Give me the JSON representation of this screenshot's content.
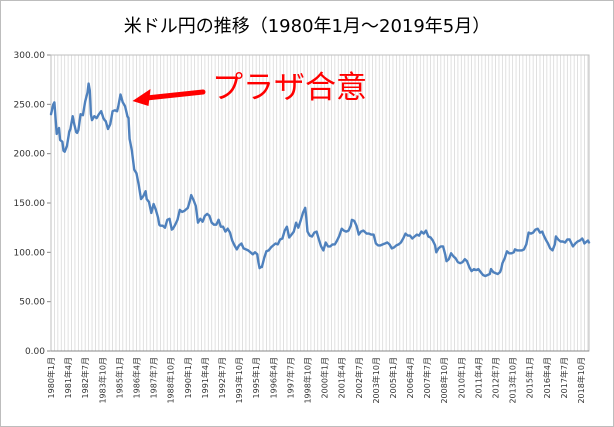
{
  "chart_data": {
    "type": "line",
    "title": "米ドル円の推移（1980年1月～2019年5月）",
    "xlabel": "",
    "ylabel": "",
    "ylim": [
      0,
      300
    ],
    "yticks": [
      "0.00",
      "50.00",
      "100.00",
      "150.00",
      "200.00",
      "250.00",
      "300.00"
    ],
    "grid": "vertical",
    "legend": "none",
    "line_color": "#4f81bd",
    "annotation": {
      "text": "プラザ合意",
      "color": "#ff0000",
      "points_to": "1985年9月"
    },
    "xticks": [
      "1980年1月",
      "1981年4月",
      "1982年7月",
      "1983年10月",
      "1985年1月",
      "1986年4月",
      "1987年7月",
      "1988年10月",
      "1990年1月",
      "1991年4月",
      "1992年7月",
      "1993年10月",
      "1995年1月",
      "1996年4月",
      "1997年7月",
      "1998年10月",
      "2000年1月",
      "2001年4月",
      "2002年7月",
      "2003年10月",
      "2005年1月",
      "2006年4月",
      "2007年7月",
      "2008年10月",
      "2010年1月",
      "2011年4月",
      "2012年7月",
      "2013年10月",
      "2015年1月",
      "2016年4月",
      "2017年7月",
      "2018年10月"
    ],
    "series": [
      {
        "values": [
          [
            "1980年1月",
            240
          ],
          [
            "1980年3月",
            250
          ],
          [
            "1980年4月",
            252
          ],
          [
            "1980年6月",
            220
          ],
          [
            "1980年8月",
            226
          ],
          [
            "1980年9月",
            214
          ],
          [
            "1980年11月",
            212
          ],
          [
            "1980年12月",
            203
          ],
          [
            "1981年1月",
            202
          ],
          [
            "1981年3月",
            208
          ],
          [
            "1981年5月",
            222
          ],
          [
            "1981年6月",
            225
          ],
          [
            "1981年8月",
            238
          ],
          [
            "1981年9月",
            232
          ],
          [
            "1981年11月",
            222
          ],
          [
            "1981年12月",
            221
          ],
          [
            "1982年1月",
            224
          ],
          [
            "1982年3月",
            240
          ],
          [
            "1982年5月",
            239
          ],
          [
            "1982年7月",
            253
          ],
          [
            "1982年9月",
            262
          ],
          [
            "1982年10月",
            271
          ],
          [
            "1982年11月",
            264
          ],
          [
            "1982年12月",
            240
          ],
          [
            "1983年1月",
            234
          ],
          [
            "1983年3月",
            238
          ],
          [
            "1983年5月",
            236
          ],
          [
            "1983年7月",
            240
          ],
          [
            "1983年9月",
            243
          ],
          [
            "1983年11月",
            236
          ],
          [
            "1983年12月",
            234
          ],
          [
            "1984年1月",
            233
          ],
          [
            "1984年3月",
            225
          ],
          [
            "1984年5月",
            230
          ],
          [
            "1984年7月",
            243
          ],
          [
            "1984年9月",
            244
          ],
          [
            "1984年11月",
            243
          ],
          [
            "1984年12月",
            248
          ],
          [
            "1985年1月",
            254
          ],
          [
            "1985年2月",
            260
          ],
          [
            "1985年4月",
            252
          ],
          [
            "1985年6月",
            248
          ],
          [
            "1985年8月",
            238
          ],
          [
            "1985年9月",
            236
          ],
          [
            "1985年10月",
            215
          ],
          [
            "1985年12月",
            203
          ],
          [
            "1986年2月",
            184
          ],
          [
            "1986年4月",
            180
          ],
          [
            "1986年6月",
            168
          ],
          [
            "1986年8月",
            154
          ],
          [
            "1986年10月",
            157
          ],
          [
            "1986年12月",
            162
          ],
          [
            "1987年1月",
            154
          ],
          [
            "1987年3月",
            151
          ],
          [
            "1987年5月",
            140
          ],
          [
            "1987年7月",
            149
          ],
          [
            "1987年9月",
            143
          ],
          [
            "1987年11月",
            135
          ],
          [
            "1987年12月",
            128
          ],
          [
            "1988年1月",
            127
          ],
          [
            "1988年3月",
            127
          ],
          [
            "1988年5月",
            125
          ],
          [
            "1988年7月",
            133
          ],
          [
            "1988年9月",
            134
          ],
          [
            "1988年11月",
            123
          ],
          [
            "1988年12月",
            124
          ],
          [
            "1989年2月",
            128
          ],
          [
            "1989年4月",
            133
          ],
          [
            "1989年6月",
            143
          ],
          [
            "1989年8月",
            141
          ],
          [
            "1989年10月",
            142
          ],
          [
            "1989年12月",
            144
          ],
          [
            "1990年1月",
            145
          ],
          [
            "1990年3月",
            153
          ],
          [
            "1990年4月",
            158
          ],
          [
            "1990年6月",
            153
          ],
          [
            "1990年8月",
            147
          ],
          [
            "1990年10月",
            130
          ],
          [
            "1990年12月",
            134
          ],
          [
            "1991年2月",
            131
          ],
          [
            "1991年4月",
            137
          ],
          [
            "1991年6月",
            139
          ],
          [
            "1991年8月",
            137
          ],
          [
            "1991年10月",
            130
          ],
          [
            "1991年12月",
            128
          ],
          [
            "1992年2月",
            128
          ],
          [
            "1992年4月",
            133
          ],
          [
            "1992年6月",
            126
          ],
          [
            "1992年8月",
            126
          ],
          [
            "1992年10月",
            121
          ],
          [
            "1992年12月",
            124
          ],
          [
            "1993年2月",
            120
          ],
          [
            "1993年4月",
            112
          ],
          [
            "1993年6月",
            107
          ],
          [
            "1993年8月",
            103
          ],
          [
            "1993年10月",
            107
          ],
          [
            "1993年12月",
            109
          ],
          [
            "1994年2月",
            104
          ],
          [
            "1994年4月",
            103
          ],
          [
            "1994年6月",
            102
          ],
          [
            "1994年8月",
            100
          ],
          [
            "1994年10月",
            98
          ],
          [
            "1994年12月",
            100
          ],
          [
            "1995年2月",
            98
          ],
          [
            "1995年3月",
            90
          ],
          [
            "1995年4月",
            84
          ],
          [
            "1995年5月",
            85
          ],
          [
            "1995年6月",
            85
          ],
          [
            "1995年8月",
            94
          ],
          [
            "1995年10月",
            101
          ],
          [
            "1995年12月",
            102
          ],
          [
            "1996年2月",
            105
          ],
          [
            "1996年4月",
            107
          ],
          [
            "1996年6月",
            109
          ],
          [
            "1996年8月",
            108
          ],
          [
            "1996年10月",
            113
          ],
          [
            "1996年12月",
            114
          ],
          [
            "1997年2月",
            122
          ],
          [
            "1997年4月",
            126
          ],
          [
            "1997年6月",
            115
          ],
          [
            "1997年8月",
            118
          ],
          [
            "1997年10月",
            121
          ],
          [
            "1997年12月",
            130
          ],
          [
            "1998年2月",
            125
          ],
          [
            "1998年4月",
            132
          ],
          [
            "1998年6月",
            140
          ],
          [
            "1998年8月",
            145
          ],
          [
            "1998年9月",
            135
          ],
          [
            "1998年10月",
            121
          ],
          [
            "1998年12月",
            117
          ],
          [
            "1999年2月",
            116
          ],
          [
            "1999年4月",
            120
          ],
          [
            "1999年6月",
            121
          ],
          [
            "1999年8月",
            113
          ],
          [
            "1999年10月",
            106
          ],
          [
            "1999年12月",
            102
          ],
          [
            "2000年2月",
            110
          ],
          [
            "2000年4月",
            106
          ],
          [
            "2000年6月",
            106
          ],
          [
            "2000年8月",
            108
          ],
          [
            "2000年10月",
            108
          ],
          [
            "2000年12月",
            112
          ],
          [
            "2001年2月",
            117
          ],
          [
            "2001年4月",
            124
          ],
          [
            "2001年6月",
            122
          ],
          [
            "2001年8月",
            121
          ],
          [
            "2001年10月",
            122
          ],
          [
            "2001年12月",
            127
          ],
          [
            "2002年1月",
            133
          ],
          [
            "2002年3月",
            132
          ],
          [
            "2002年5月",
            127
          ],
          [
            "2002年7月",
            118
          ],
          [
            "2002年9月",
            121
          ],
          [
            "2002年11月",
            122
          ],
          [
            "2002年12月",
            121
          ],
          [
            "2003年2月",
            119
          ],
          [
            "2003年4月",
            119
          ],
          [
            "2003年6月",
            118
          ],
          [
            "2003年8月",
            118
          ],
          [
            "2003年10月",
            109
          ],
          [
            "2003年12月",
            107
          ],
          [
            "2004年2月",
            107
          ],
          [
            "2004年4月",
            108
          ],
          [
            "2004年6月",
            109
          ],
          [
            "2004年8月",
            110
          ],
          [
            "2004年10月",
            108
          ],
          [
            "2004年12月",
            104
          ],
          [
            "2005年2月",
            105
          ],
          [
            "2005年4月",
            107
          ],
          [
            "2005年6月",
            108
          ],
          [
            "2005年8月",
            110
          ],
          [
            "2005年10月",
            114
          ],
          [
            "2005年12月",
            119
          ],
          [
            "2006年2月",
            117
          ],
          [
            "2006年4月",
            117
          ],
          [
            "2006年6月",
            114
          ],
          [
            "2006年8月",
            116
          ],
          [
            "2006年10月",
            118
          ],
          [
            "2006年12月",
            117
          ],
          [
            "2007年2月",
            121
          ],
          [
            "2007年4月",
            119
          ],
          [
            "2007年6月",
            122
          ],
          [
            "2007年8月",
            116
          ],
          [
            "2007年10月",
            115
          ],
          [
            "2007年12月",
            112
          ],
          [
            "2008年2月",
            107
          ],
          [
            "2008年3月",
            100
          ],
          [
            "2008年5月",
            104
          ],
          [
            "2008年7月",
            106
          ],
          [
            "2008年9月",
            106
          ],
          [
            "2008年11月",
            97
          ],
          [
            "2008年12月",
            91
          ],
          [
            "2009年2月",
            93
          ],
          [
            "2009年4月",
            99
          ],
          [
            "2009年6月",
            96
          ],
          [
            "2009年8月",
            94
          ],
          [
            "2009年10月",
            90
          ],
          [
            "2009年12月",
            89
          ],
          [
            "2010年2月",
            90
          ],
          [
            "2010年4月",
            93
          ],
          [
            "2010年6月",
            91
          ],
          [
            "2010年8月",
            85
          ],
          [
            "2010年10月",
            81
          ],
          [
            "2010年12月",
            83
          ],
          [
            "2011年2月",
            82
          ],
          [
            "2011年4月",
            83
          ],
          [
            "2011年6月",
            80
          ],
          [
            "2011年8月",
            77
          ],
          [
            "2011年10月",
            76
          ],
          [
            "2011年12月",
            77
          ],
          [
            "2012年2月",
            78
          ],
          [
            "2012年3月",
            83
          ],
          [
            "2012年5月",
            80
          ],
          [
            "2012年7月",
            79
          ],
          [
            "2012年9月",
            78
          ],
          [
            "2012年11月",
            80
          ],
          [
            "2012年12月",
            83
          ],
          [
            "2013年1月",
            89
          ],
          [
            "2013年3月",
            94
          ],
          [
            "2013年5月",
            101
          ],
          [
            "2013年7月",
            99
          ],
          [
            "2013年9月",
            99
          ],
          [
            "2013年11月",
            100
          ],
          [
            "2013年12月",
            103
          ],
          [
            "2014年2月",
            102
          ],
          [
            "2014年4月",
            102
          ],
          [
            "2014年6月",
            102
          ],
          [
            "2014年8月",
            103
          ],
          [
            "2014年10月",
            108
          ],
          [
            "2014年12月",
            120
          ],
          [
            "2015年2月",
            119
          ],
          [
            "2015年4月",
            120
          ],
          [
            "2015年6月",
            123
          ],
          [
            "2015年8月",
            124
          ],
          [
            "2015年10月",
            120
          ],
          [
            "2015年12月",
            121
          ],
          [
            "2016年1月",
            118
          ],
          [
            "2016年3月",
            113
          ],
          [
            "2016年5月",
            109
          ],
          [
            "2016年7月",
            104
          ],
          [
            "2016年9月",
            102
          ],
          [
            "2016年11月",
            108
          ],
          [
            "2016年12月",
            116
          ],
          [
            "2017年2月",
            113
          ],
          [
            "2017年4月",
            111
          ],
          [
            "2017年6月",
            111
          ],
          [
            "2017年8月",
            110
          ],
          [
            "2017年10月",
            113
          ],
          [
            "2017年12月",
            113
          ],
          [
            "2018年2月",
            108
          ],
          [
            "2018年3月",
            106
          ],
          [
            "2018年5月",
            109
          ],
          [
            "2018年7月",
            111
          ],
          [
            "2018年9月",
            112
          ],
          [
            "2018年11月",
            114
          ],
          [
            "2018年12月",
            112
          ],
          [
            "2019年1月",
            109
          ],
          [
            "2019年3月",
            111
          ],
          [
            "2019年4月",
            112
          ],
          [
            "2019年5月",
            110
          ]
        ]
      }
    ]
  }
}
